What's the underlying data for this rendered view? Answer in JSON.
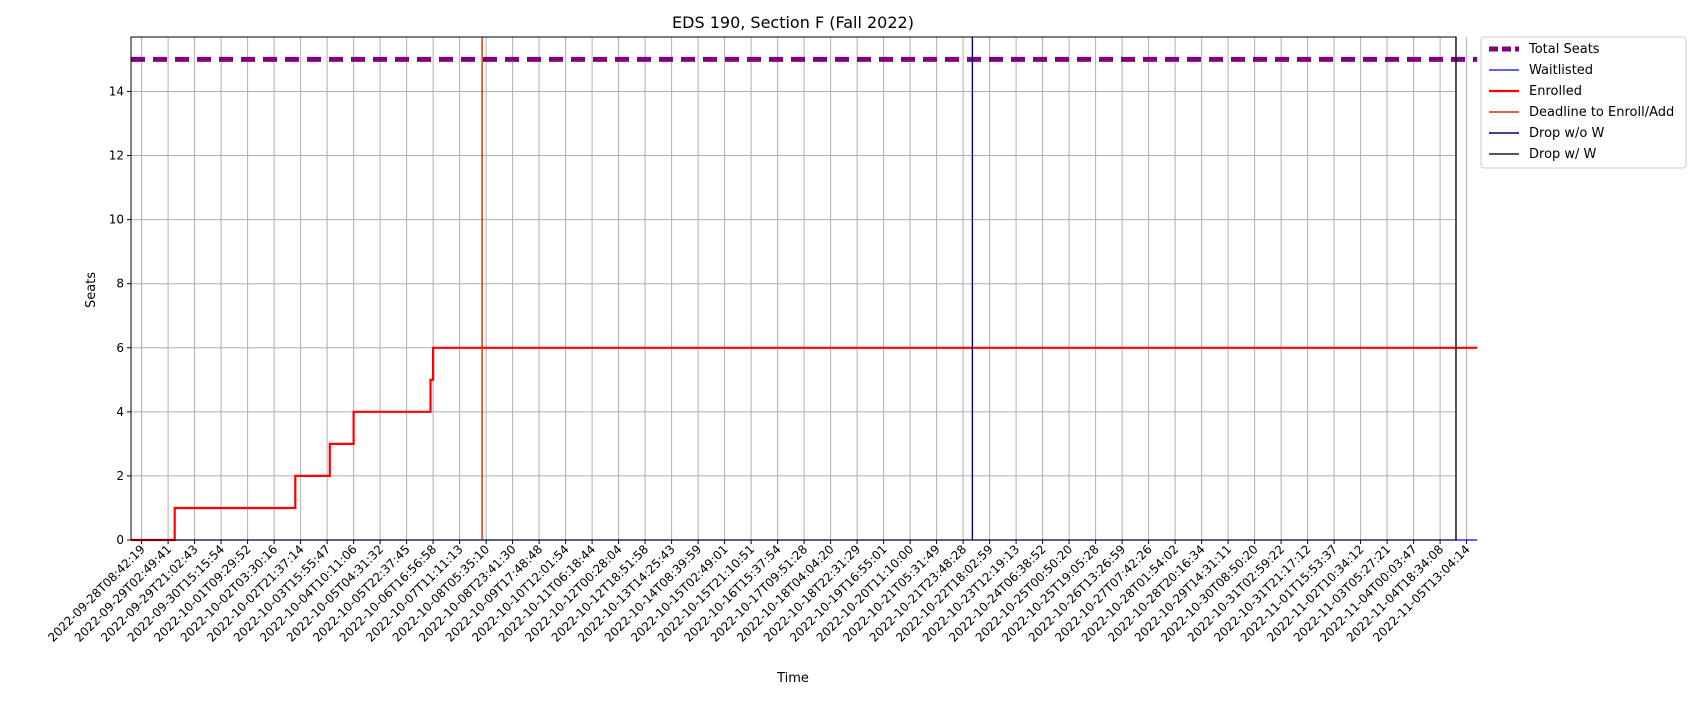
{
  "chart_data": {
    "type": "line",
    "title": "EDS 190, Section F (Fall 2022)",
    "xlabel": "Time",
    "ylabel": "Seats",
    "ylim": [
      0,
      15.7
    ],
    "yticks": [
      0,
      2,
      4,
      6,
      8,
      10,
      12,
      14
    ],
    "grid": true,
    "legend_position": "outside-top-right",
    "x_tick_labels": [
      "2022-09-28T08:42:19",
      "2022-09-29T02:49:41",
      "2022-09-29T21:02:43",
      "2022-09-30T15:15:54",
      "2022-10-01T09:29:52",
      "2022-10-02T03:30:16",
      "2022-10-02T21:37:14",
      "2022-10-03T15:55:47",
      "2022-10-04T10:11:06",
      "2022-10-05T04:31:32",
      "2022-10-05T22:37:45",
      "2022-10-06T16:56:58",
      "2022-10-07T11:11:13",
      "2022-10-08T05:35:10",
      "2022-10-08T23:41:30",
      "2022-10-09T17:48:48",
      "2022-10-10T12:01:54",
      "2022-10-11T06:18:44",
      "2022-10-12T00:28:04",
      "2022-10-12T18:51:58",
      "2022-10-13T14:25:43",
      "2022-10-14T08:39:59",
      "2022-10-15T02:49:01",
      "2022-10-15T21:10:51",
      "2022-10-16T15:37:54",
      "2022-10-17T09:51:28",
      "2022-10-18T04:04:20",
      "2022-10-18T22:31:29",
      "2022-10-19T16:55:01",
      "2022-10-20T11:10:00",
      "2022-10-21T05:31:49",
      "2022-10-21T23:48:28",
      "2022-10-22T18:02:59",
      "2022-10-23T12:19:13",
      "2022-10-24T06:38:52",
      "2022-10-25T00:50:20",
      "2022-10-25T19:05:28",
      "2022-10-26T13:26:59",
      "2022-10-27T07:42:26",
      "2022-10-28T01:54:02",
      "2022-10-28T20:16:34",
      "2022-10-29T14:31:11",
      "2022-10-30T08:50:20",
      "2022-10-31T02:59:22",
      "2022-10-31T21:17:12",
      "2022-11-01T15:53:37",
      "2022-11-02T10:34:12",
      "2022-11-03T05:27:21",
      "2022-11-04T00:03:47",
      "2022-11-04T18:34:08",
      "2022-11-05T13:04:14"
    ],
    "x_range_ticks": [
      -0.4,
      50.4
    ],
    "series": [
      {
        "name": "Total Seats",
        "color": "#800080",
        "style": "dashed",
        "points": [
          [
            -0.4,
            15
          ],
          [
            50.4,
            15
          ]
        ]
      },
      {
        "name": "Waitlisted",
        "color": "#0000ff",
        "style": "solid",
        "points": [
          [
            -0.4,
            0
          ],
          [
            50.4,
            0
          ]
        ]
      },
      {
        "name": "Enrolled",
        "color": "#ff0000",
        "style": "solid",
        "points": [
          [
            -0.4,
            0
          ],
          [
            1.25,
            0
          ],
          [
            1.25,
            1
          ],
          [
            5.8,
            1
          ],
          [
            5.8,
            2
          ],
          [
            7.1,
            2
          ],
          [
            7.1,
            3
          ],
          [
            8.0,
            3
          ],
          [
            8.0,
            4
          ],
          [
            10.9,
            4
          ],
          [
            10.9,
            5
          ],
          [
            11.0,
            5
          ],
          [
            11.0,
            6
          ],
          [
            50.4,
            6
          ]
        ]
      }
    ],
    "markers": [
      {
        "name": "Deadline to Enroll/Add",
        "color": "#cc3300",
        "x": 12.85
      },
      {
        "name": "Drop w/o W",
        "color": "#000080",
        "x": 31.35
      },
      {
        "name": "Drop w/ W",
        "color": "#1a1a3a",
        "x": 49.6
      }
    ],
    "legend": [
      "Total Seats",
      "Waitlisted",
      "Enrolled",
      "Deadline to Enroll/Add",
      "Drop w/o W",
      "Drop w/ W"
    ]
  }
}
